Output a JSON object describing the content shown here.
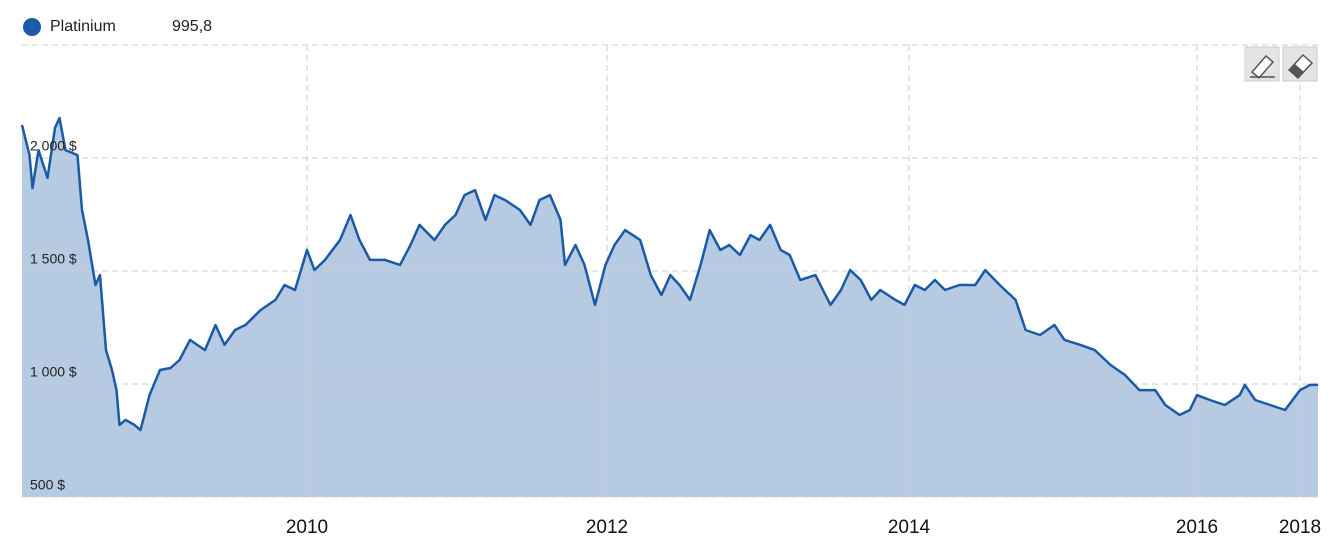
{
  "chart_data": {
    "type": "area",
    "series": [
      {
        "name": "Platinium",
        "legend_value": "995,8",
        "color": "#1a5aa6",
        "fill": "#b6cae1",
        "x": [
          2008.1,
          2008.15,
          2008.17,
          2008.21,
          2008.27,
          2008.32,
          2008.35,
          2008.39,
          2008.47,
          2008.5,
          2008.54,
          2008.59,
          2008.62,
          2008.66,
          2008.7,
          2008.73,
          2008.75,
          2008.79,
          2008.85,
          2008.89,
          2008.95,
          2009.02,
          2009.09,
          2009.15,
          2009.22,
          2009.32,
          2009.39,
          2009.45,
          2009.52,
          2009.59,
          2009.69,
          2009.79,
          2009.85,
          2009.92,
          2010.0,
          2010.05,
          2010.12,
          2010.22,
          2010.29,
          2010.35,
          2010.42,
          2010.52,
          2010.62,
          2010.69,
          2010.75,
          2010.85,
          2010.92,
          2010.99,
          2011.05,
          2011.12,
          2011.19,
          2011.25,
          2011.32,
          2011.42,
          2011.49,
          2011.55,
          2011.62,
          2011.69,
          2011.72,
          2011.79,
          2011.85,
          2011.92,
          2011.99,
          2012.05,
          2012.12,
          2012.22,
          2012.29,
          2012.36,
          2012.42,
          2012.48,
          2012.55,
          2012.62,
          2012.68,
          2012.75,
          2012.81,
          2012.88,
          2012.95,
          2013.01,
          2013.08,
          2013.15,
          2013.21,
          2013.28,
          2013.38,
          2013.48,
          2013.55,
          2013.61,
          2013.68,
          2013.75,
          2013.81,
          2013.91,
          2013.97,
          2014.04,
          2014.11,
          2014.18,
          2014.25,
          2014.35,
          2014.46,
          2014.53,
          2014.63,
          2014.74,
          2014.81,
          2014.91,
          2015.01,
          2015.08,
          2015.19,
          2015.29,
          2015.4,
          2015.5,
          2015.6,
          2015.71,
          2015.78,
          2015.88,
          2015.95,
          2016.0,
          2016.25,
          2016.54,
          2016.83,
          2016.93,
          2017.13,
          2017.42,
          2017.71,
          2018.0,
          2018.11,
          2018.2
        ],
        "values": [
          2146,
          2013,
          1867,
          2035,
          1912,
          2133,
          2177,
          2035,
          2013,
          1770,
          1637,
          1438,
          1482,
          1150,
          1062,
          973,
          819,
          841,
          819,
          796,
          951,
          1062,
          1071,
          1106,
          1195,
          1150,
          1261,
          1173,
          1239,
          1261,
          1327,
          1372,
          1438,
          1416,
          1593,
          1504,
          1549,
          1637,
          1748,
          1637,
          1549,
          1549,
          1527,
          1615,
          1704,
          1637,
          1704,
          1748,
          1836,
          1858,
          1726,
          1836,
          1814,
          1770,
          1704,
          1814,
          1836,
          1726,
          1527,
          1615,
          1527,
          1350,
          1527,
          1615,
          1681,
          1637,
          1482,
          1394,
          1482,
          1438,
          1372,
          1527,
          1681,
          1593,
          1615,
          1571,
          1659,
          1637,
          1704,
          1593,
          1571,
          1460,
          1482,
          1350,
          1416,
          1504,
          1460,
          1372,
          1416,
          1372,
          1350,
          1438,
          1416,
          1460,
          1416,
          1438,
          1438,
          1504,
          1438,
          1372,
          1239,
          1217,
          1261,
          1195,
          1173,
          1150,
          1084,
          1040,
          973,
          973,
          907,
          863,
          885,
          951,
          929,
          907,
          951,
          996,
          929,
          907,
          885,
          973,
          996,
          995.8
        ]
      }
    ],
    "xlim": [
      2008.1,
      2018.2
    ],
    "xticks": [
      2010,
      2012,
      2014,
      2016,
      2018
    ],
    "ylim": [
      500,
      2500
    ],
    "yticks": [
      {
        "value": 500,
        "label": "500 $"
      },
      {
        "value": 1000,
        "label": "1 000 $"
      },
      {
        "value": 1500,
        "label": "1 500 $"
      },
      {
        "value": 2000,
        "label": "2 000 $"
      }
    ],
    "grid": true
  }
}
